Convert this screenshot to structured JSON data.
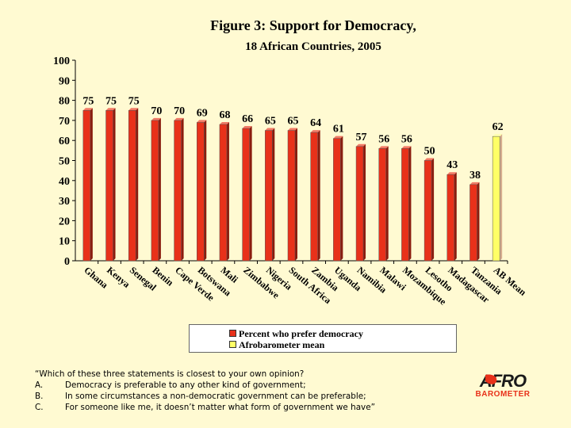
{
  "colors": {
    "background": "#FFFAD2",
    "bar_red": "#E8311A",
    "bar_mean": "#FFFF66",
    "logo_red": "#E8311A"
  },
  "chart_data": {
    "type": "bar",
    "title": "Figure 3:  Support for Democracy,",
    "subtitle": "18 African Countries, 2005",
    "ylim": [
      0,
      100
    ],
    "y_ticks": [
      0,
      10,
      20,
      30,
      40,
      50,
      60,
      70,
      80,
      90,
      100
    ],
    "grid": false,
    "legend_position": "bottom",
    "categories": [
      "Ghana",
      "Kenya",
      "Senegal",
      "Benin",
      "Cape Verde",
      "Botswana",
      "Mali",
      "Zimbabwe",
      "Nigeria",
      "South Africa",
      "Zambia",
      "Uganda",
      "Namibia",
      "Malawi",
      "Mozambique",
      "Lesotho",
      "Madagascar",
      "Tanzania",
      "AB Mean"
    ],
    "series": [
      {
        "name": "Percent who prefer democracy",
        "values": [
          75,
          75,
          75,
          70,
          70,
          69,
          68,
          66,
          65,
          65,
          64,
          61,
          57,
          56,
          56,
          50,
          43,
          38,
          null
        ]
      },
      {
        "name": "Afrobarometer mean",
        "values": [
          null,
          null,
          null,
          null,
          null,
          null,
          null,
          null,
          null,
          null,
          null,
          null,
          null,
          null,
          null,
          null,
          null,
          null,
          62
        ]
      }
    ]
  },
  "question": {
    "prompt": "“Which of these three statements is closest to your own opinion?",
    "options": [
      {
        "letter": "A.",
        "text": "Democracy is preferable to any other kind of government;"
      },
      {
        "letter": "B.",
        "text": "In some circumstances a non-democratic government can be preferable;"
      },
      {
        "letter": "C.",
        "text": "For someone like me, it doesn’t matter what form of government we have”"
      }
    ]
  },
  "logo": {
    "top": "AFRO",
    "bottom": "BAROMETER"
  }
}
